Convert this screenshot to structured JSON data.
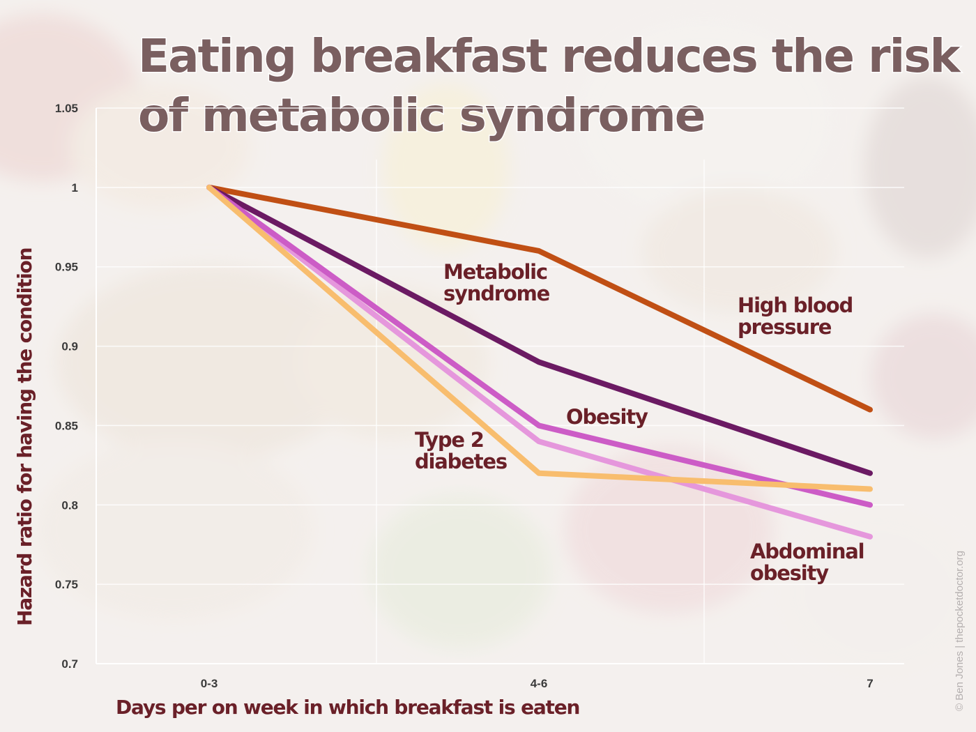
{
  "chart_data": {
    "type": "line",
    "title_lines": [
      "Eating breakfast reduces the risk",
      "of metabolic syndrome"
    ],
    "xlabel": "Days per on week in which breakfast is eaten",
    "ylabel": "Hazard ratio for having the condition",
    "categories": [
      "0-3",
      "4-6",
      "7"
    ],
    "y_ticks": [
      "1.05",
      "1",
      "0.95",
      "0.9",
      "0.85",
      "0.8",
      "0.75",
      "0.7"
    ],
    "ylim": [
      0.7,
      1.05
    ],
    "grid": true,
    "series": [
      {
        "name": "High blood pressure",
        "label_lines": [
          "High blood",
          "pressure"
        ],
        "color": "#c04f14",
        "values": [
          1.0,
          0.96,
          0.86
        ]
      },
      {
        "name": "Metabolic syndrome",
        "label_lines": [
          "Metabolic",
          "syndrome"
        ],
        "color": "#6b1a63",
        "values": [
          1.0,
          0.89,
          0.82
        ]
      },
      {
        "name": "Abdominal obesity",
        "label_lines": [
          "Abdominal",
          "obesity"
        ],
        "color": "#e597dc",
        "values": [
          1.0,
          0.84,
          0.78
        ]
      },
      {
        "name": "Obesity",
        "label_lines": [
          "Obesity"
        ],
        "color": "#cc5cc6",
        "values": [
          1.0,
          0.85,
          0.8
        ]
      },
      {
        "name": "Type 2 diabetes",
        "label_lines": [
          "Type 2",
          "diabetes"
        ],
        "color": "#f8bd6e",
        "values": [
          1.0,
          0.82,
          0.81
        ]
      }
    ]
  },
  "credit": "© Ben Jones | thepocketdoctor.org"
}
